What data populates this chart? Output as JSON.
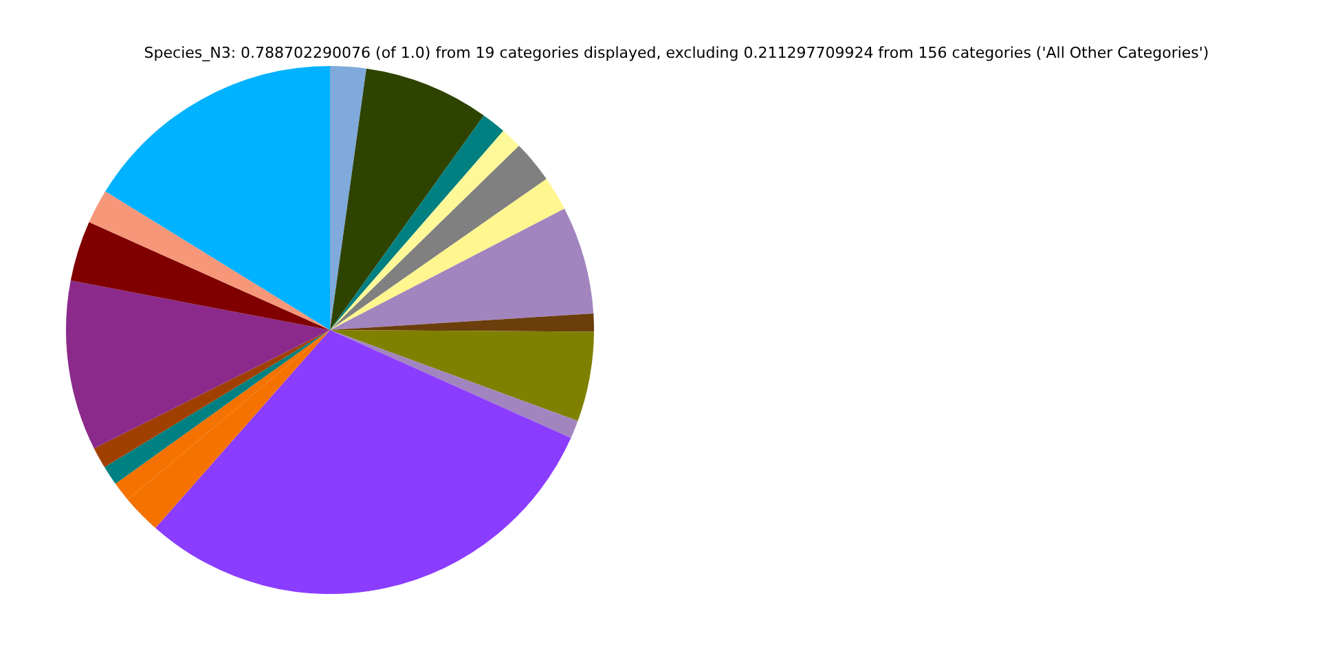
{
  "chart_data": {
    "type": "pie",
    "title": "Species_N3: 0.788702290076 (of 1.0) from 19 categories displayed, excluding 0.211297709924 from 156 categories ('All Other Categories')",
    "categories": [
      null,
      null,
      null,
      null,
      null,
      null,
      null,
      null,
      null,
      null,
      null,
      null,
      null,
      null,
      null,
      null,
      null,
      null,
      null
    ],
    "values": [
      2.2,
      7.7,
      1.5,
      1.3,
      2.6,
      2.1,
      6.6,
      1.1,
      5.5,
      1.1,
      29.8,
      2.4,
      1.2,
      1.2,
      1.3,
      10.4,
      3.7,
      2.1,
      16.2
    ],
    "colors": [
      "#80aadc",
      "#2e4300",
      "#008080",
      "#fff899",
      "#808080",
      "#fff68f",
      "#a285bf",
      "#6b3e0c",
      "#808000",
      "#a285bf",
      "#8b3dff",
      "#f57200",
      "#f57200",
      "#008080",
      "#a04000",
      "#8b2a8b",
      "#800000",
      "#f7977a",
      "#00b2ff"
    ],
    "legend": false
  }
}
